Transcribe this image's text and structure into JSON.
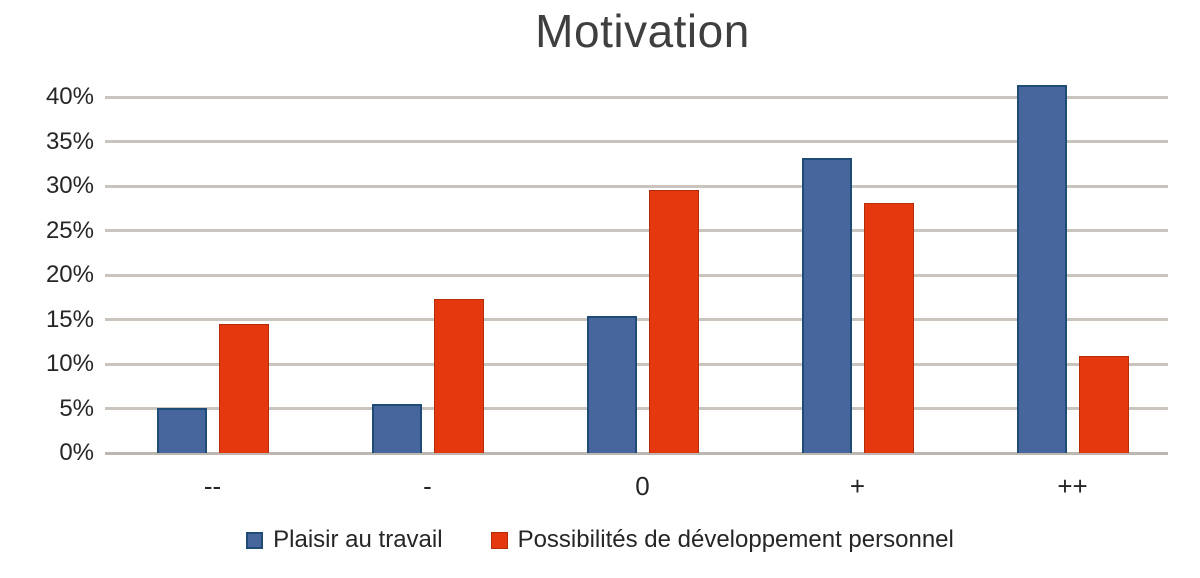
{
  "chart_data": {
    "type": "bar",
    "title": "Motivation",
    "categories": [
      "--",
      "-",
      "0",
      "+",
      "++"
    ],
    "series": [
      {
        "name": "Plaisir au travail",
        "color": "#47669e",
        "border_color": "#1e4c77",
        "values": [
          5.1,
          5.5,
          15.4,
          33.1,
          41.4
        ]
      },
      {
        "name": "Possibilités de développement personnel",
        "color": "#e6380f",
        "border_color": "#b42d0b",
        "values": [
          14.5,
          17.3,
          29.5,
          28.1,
          10.9
        ]
      }
    ],
    "xlabel": "",
    "ylabel": "",
    "ymin": 0,
    "ymax": 40,
    "tick_step": 5,
    "y_tick_suffix": "%",
    "grid": true,
    "legend_position": "bottom",
    "gridline_color": "#c9c4bd",
    "axis_line_color": "#bcb7b0",
    "title_color": "#3f3f3f",
    "text_color": "#262626",
    "background_color": "#ffffff"
  }
}
